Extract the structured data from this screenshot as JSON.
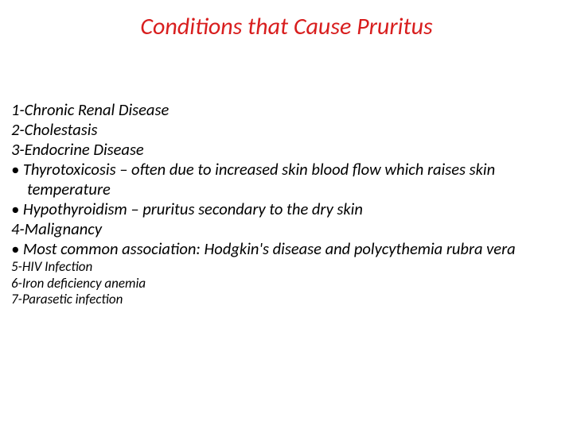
{
  "colors": {
    "title": "#d81e1e",
    "body": "#000000",
    "background": "#ffffff"
  },
  "title": "Conditions that Cause Pruritus",
  "lines": [
    {
      "text": "1-Chronic Renal Disease",
      "size": "big",
      "indent": false
    },
    {
      "text": "2-Cholestasis",
      "size": "big",
      "indent": false
    },
    {
      "text": "3-Endocrine Disease",
      "size": "big",
      "indent": false
    },
    {
      "text": "• Thyrotoxicosis – often due to increased skin blood flow which raises skin",
      "size": "big",
      "indent": false
    },
    {
      "text": "temperature",
      "size": "big",
      "indent": true
    },
    {
      "text": "• Hypothyroidism –  pruritus secondary to the dry skin",
      "size": "big",
      "indent": false
    },
    {
      "text": "4-Malignancy",
      "size": "big",
      "indent": false
    },
    {
      "text": "• Most common association: Hodgkin's disease and polycythemia rubra vera",
      "size": "big",
      "indent": false
    },
    {
      "text": "5-HIV Infection",
      "size": "small",
      "indent": false
    },
    {
      "text": "6-Iron deficiency anemia",
      "size": "small",
      "indent": false
    },
    {
      "text": "7-Parasetic infection",
      "size": "small",
      "indent": false
    }
  ]
}
